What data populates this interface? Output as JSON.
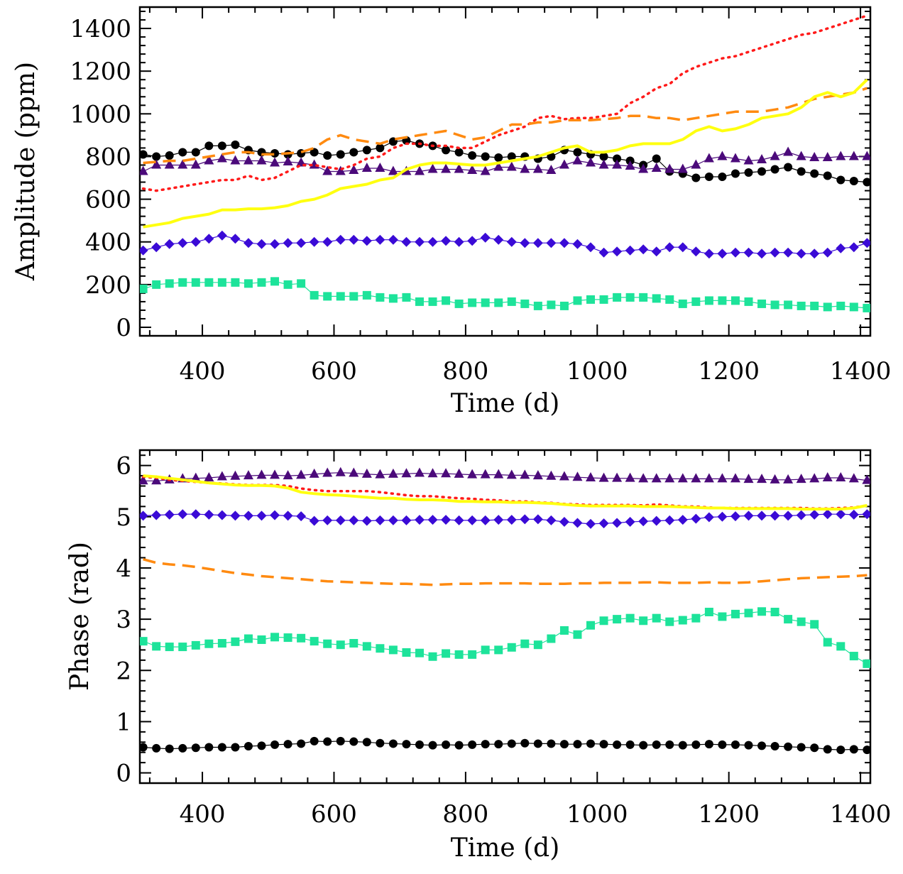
{
  "chart_data": [
    {
      "type": "line",
      "xlabel": "Time (d)",
      "ylabel": "Amplitude (ppm)",
      "xlim": [
        305,
        1415
      ],
      "ylim": [
        -40,
        1500
      ],
      "xticks": [
        400,
        600,
        800,
        1000,
        1200,
        1400
      ],
      "yticks": [
        0,
        200,
        400,
        600,
        800,
        1000,
        1200,
        1400
      ],
      "x": [
        310,
        330,
        350,
        370,
        390,
        410,
        430,
        450,
        470,
        490,
        510,
        530,
        550,
        570,
        590,
        610,
        630,
        650,
        670,
        690,
        710,
        730,
        750,
        770,
        790,
        810,
        830,
        850,
        870,
        890,
        910,
        930,
        950,
        970,
        990,
        1010,
        1030,
        1050,
        1070,
        1090,
        1110,
        1130,
        1150,
        1170,
        1190,
        1210,
        1230,
        1250,
        1270,
        1290,
        1310,
        1330,
        1350,
        1370,
        1390,
        1410
      ],
      "series": [
        {
          "name": "black-circles",
          "color": "#000000",
          "marker": "circle",
          "line": "solid",
          "values": [
            810,
            800,
            805,
            820,
            820,
            850,
            850,
            855,
            830,
            820,
            815,
            810,
            815,
            820,
            805,
            810,
            820,
            830,
            840,
            870,
            875,
            860,
            850,
            830,
            820,
            805,
            800,
            795,
            800,
            800,
            790,
            800,
            830,
            820,
            810,
            800,
            790,
            780,
            760,
            790,
            730,
            720,
            700,
            705,
            705,
            720,
            725,
            730,
            740,
            750,
            730,
            720,
            710,
            690,
            685,
            680
          ]
        },
        {
          "name": "purple-triangles",
          "color": "#4b0a7a",
          "marker": "triangle",
          "line": "solid",
          "values": [
            730,
            760,
            760,
            760,
            760,
            780,
            790,
            780,
            780,
            780,
            770,
            775,
            770,
            760,
            730,
            730,
            735,
            745,
            745,
            730,
            730,
            730,
            740,
            740,
            740,
            735,
            730,
            750,
            750,
            740,
            740,
            735,
            760,
            780,
            770,
            760,
            760,
            755,
            740,
            745,
            740,
            740,
            760,
            790,
            800,
            790,
            780,
            785,
            800,
            820,
            800,
            795,
            795,
            800,
            800,
            800
          ]
        },
        {
          "name": "blue-diamonds",
          "color": "#3a0ad6",
          "marker": "diamond",
          "line": "solid",
          "values": [
            360,
            375,
            390,
            395,
            400,
            415,
            430,
            415,
            395,
            390,
            390,
            395,
            395,
            400,
            400,
            410,
            410,
            405,
            410,
            410,
            400,
            400,
            400,
            405,
            400,
            405,
            420,
            410,
            400,
            395,
            395,
            395,
            395,
            390,
            375,
            350,
            355,
            360,
            365,
            355,
            375,
            375,
            355,
            345,
            345,
            350,
            350,
            345,
            350,
            350,
            345,
            345,
            350,
            370,
            375,
            395
          ]
        },
        {
          "name": "green-squares",
          "color": "#1de39a",
          "marker": "square",
          "line": "solid",
          "values": [
            180,
            200,
            205,
            210,
            210,
            210,
            210,
            210,
            205,
            210,
            215,
            200,
            205,
            150,
            145,
            145,
            145,
            150,
            140,
            135,
            140,
            120,
            120,
            125,
            110,
            115,
            115,
            115,
            120,
            110,
            100,
            105,
            100,
            125,
            130,
            130,
            140,
            140,
            140,
            135,
            130,
            110,
            120,
            125,
            125,
            125,
            120,
            110,
            105,
            105,
            100,
            100,
            95,
            100,
            95,
            90
          ]
        },
        {
          "name": "red-dotted",
          "color": "#ff1a1a",
          "marker": "none",
          "line": "dotted",
          "values": [
            650,
            640,
            650,
            660,
            670,
            680,
            690,
            690,
            710,
            690,
            700,
            730,
            760,
            760,
            750,
            740,
            760,
            790,
            800,
            840,
            860,
            860,
            850,
            850,
            840,
            840,
            870,
            900,
            920,
            940,
            980,
            990,
            975,
            980,
            980,
            990,
            1000,
            1050,
            1080,
            1120,
            1140,
            1190,
            1220,
            1240,
            1260,
            1270,
            1290,
            1310,
            1330,
            1350,
            1370,
            1380,
            1400,
            1420,
            1440,
            1460
          ]
        },
        {
          "name": "orange-dashed",
          "color": "#ff8a10",
          "marker": "none",
          "line": "dashed",
          "values": [
            770,
            775,
            780,
            780,
            790,
            800,
            810,
            820,
            820,
            810,
            810,
            815,
            820,
            840,
            880,
            900,
            880,
            870,
            860,
            880,
            890,
            900,
            910,
            920,
            900,
            880,
            890,
            920,
            950,
            950,
            960,
            960,
            970,
            970,
            970,
            975,
            980,
            990,
            990,
            980,
            980,
            970,
            980,
            990,
            1000,
            1010,
            1010,
            1010,
            1020,
            1030,
            1050,
            1070,
            1080,
            1090,
            1100,
            1120
          ]
        },
        {
          "name": "yellow-solid",
          "color": "#ffff10",
          "marker": "none",
          "line": "solid",
          "values": [
            470,
            480,
            490,
            510,
            520,
            530,
            550,
            550,
            555,
            555,
            560,
            570,
            590,
            600,
            620,
            650,
            660,
            670,
            690,
            700,
            740,
            760,
            770,
            770,
            765,
            760,
            760,
            770,
            780,
            790,
            800,
            820,
            840,
            850,
            820,
            820,
            830,
            850,
            860,
            860,
            860,
            880,
            920,
            940,
            920,
            930,
            950,
            980,
            990,
            1000,
            1030,
            1080,
            1100,
            1080,
            1100,
            1160
          ]
        }
      ]
    },
    {
      "type": "line",
      "xlabel": "Time (d)",
      "ylabel": "Phase (rad)",
      "xlim": [
        305,
        1415
      ],
      "ylim": [
        -0.2,
        6.3
      ],
      "xticks": [
        400,
        600,
        800,
        1000,
        1200,
        1400
      ],
      "yticks": [
        0,
        1,
        2,
        3,
        4,
        5,
        6
      ],
      "x": [
        310,
        330,
        350,
        370,
        390,
        410,
        430,
        450,
        470,
        490,
        510,
        530,
        550,
        570,
        590,
        610,
        630,
        650,
        670,
        690,
        710,
        730,
        750,
        770,
        790,
        810,
        830,
        850,
        870,
        890,
        910,
        930,
        950,
        970,
        990,
        1010,
        1030,
        1050,
        1070,
        1090,
        1110,
        1130,
        1150,
        1170,
        1190,
        1210,
        1230,
        1250,
        1270,
        1290,
        1310,
        1330,
        1350,
        1370,
        1390,
        1410
      ],
      "series": [
        {
          "name": "black-circles",
          "color": "#000000",
          "marker": "circle",
          "line": "solid",
          "values": [
            0.5,
            0.48,
            0.47,
            0.48,
            0.49,
            0.5,
            0.5,
            0.5,
            0.52,
            0.53,
            0.55,
            0.56,
            0.57,
            0.62,
            0.61,
            0.62,
            0.61,
            0.6,
            0.58,
            0.57,
            0.56,
            0.55,
            0.54,
            0.55,
            0.54,
            0.55,
            0.56,
            0.56,
            0.57,
            0.58,
            0.57,
            0.57,
            0.56,
            0.56,
            0.57,
            0.56,
            0.55,
            0.55,
            0.54,
            0.55,
            0.55,
            0.54,
            0.55,
            0.56,
            0.55,
            0.55,
            0.54,
            0.53,
            0.52,
            0.51,
            0.5,
            0.49,
            0.46,
            0.45,
            0.46,
            0.45
          ]
        },
        {
          "name": "purple-triangles",
          "color": "#4b0a7a",
          "marker": "triangle",
          "line": "solid",
          "values": [
            5.7,
            5.7,
            5.72,
            5.74,
            5.75,
            5.76,
            5.78,
            5.79,
            5.8,
            5.81,
            5.81,
            5.8,
            5.81,
            5.83,
            5.85,
            5.86,
            5.85,
            5.83,
            5.82,
            5.83,
            5.84,
            5.85,
            5.84,
            5.84,
            5.83,
            5.82,
            5.82,
            5.82,
            5.81,
            5.81,
            5.8,
            5.79,
            5.78,
            5.77,
            5.76,
            5.75,
            5.75,
            5.75,
            5.74,
            5.74,
            5.74,
            5.74,
            5.74,
            5.74,
            5.74,
            5.74,
            5.73,
            5.73,
            5.72,
            5.72,
            5.73,
            5.74,
            5.76,
            5.76,
            5.74,
            5.71
          ]
        },
        {
          "name": "blue-diamonds",
          "color": "#3a0ad6",
          "marker": "diamond",
          "line": "solid",
          "values": [
            5.02,
            5.03,
            5.04,
            5.05,
            5.05,
            5.04,
            5.03,
            5.02,
            5.02,
            5.02,
            5.03,
            5.02,
            5.01,
            4.92,
            4.93,
            4.93,
            4.93,
            4.92,
            4.93,
            4.93,
            4.93,
            4.94,
            4.94,
            4.94,
            4.93,
            4.93,
            4.93,
            4.94,
            4.94,
            4.95,
            4.95,
            4.93,
            4.9,
            4.88,
            4.86,
            4.87,
            4.88,
            4.9,
            4.91,
            4.92,
            4.93,
            4.94,
            4.96,
            4.99,
            5.0,
            5.01,
            5.02,
            5.02,
            5.02,
            5.02,
            5.03,
            5.04,
            5.05,
            5.05,
            5.04,
            5.05
          ]
        },
        {
          "name": "green-squares",
          "color": "#1de39a",
          "marker": "square",
          "line": "solid",
          "values": [
            2.57,
            2.47,
            2.46,
            2.46,
            2.49,
            2.52,
            2.53,
            2.56,
            2.62,
            2.6,
            2.65,
            2.64,
            2.63,
            2.57,
            2.52,
            2.5,
            2.53,
            2.47,
            2.43,
            2.4,
            2.35,
            2.34,
            2.27,
            2.33,
            2.31,
            2.31,
            2.4,
            2.4,
            2.45,
            2.52,
            2.5,
            2.62,
            2.78,
            2.7,
            2.88,
            2.97,
            3.0,
            3.02,
            2.97,
            3.02,
            2.95,
            2.98,
            3.02,
            3.14,
            3.05,
            3.1,
            3.12,
            3.15,
            3.14,
            3.0,
            2.95,
            2.9,
            2.55,
            2.47,
            2.28,
            2.13
          ]
        },
        {
          "name": "red-dotted",
          "color": "#ff1a1a",
          "marker": "none",
          "line": "dotted",
          "values": [
            5.78,
            5.76,
            5.72,
            5.7,
            5.68,
            5.66,
            5.65,
            5.63,
            5.62,
            5.62,
            5.62,
            5.6,
            5.55,
            5.52,
            5.5,
            5.5,
            5.5,
            5.5,
            5.48,
            5.45,
            5.42,
            5.4,
            5.4,
            5.38,
            5.36,
            5.35,
            5.33,
            5.32,
            5.3,
            5.3,
            5.28,
            5.27,
            5.25,
            5.24,
            5.23,
            5.23,
            5.23,
            5.23,
            5.22,
            5.24,
            5.22,
            5.2,
            5.2,
            5.18,
            5.17,
            5.17,
            5.17,
            5.17,
            5.17,
            5.17,
            5.17,
            5.16,
            5.16,
            5.17,
            5.18,
            5.22
          ]
        },
        {
          "name": "orange-dashed",
          "color": "#ff8a10",
          "marker": "none",
          "line": "dashed",
          "values": [
            4.17,
            4.1,
            4.07,
            4.05,
            4.02,
            3.98,
            3.94,
            3.9,
            3.87,
            3.84,
            3.82,
            3.8,
            3.78,
            3.76,
            3.74,
            3.73,
            3.72,
            3.71,
            3.7,
            3.69,
            3.69,
            3.68,
            3.67,
            3.68,
            3.69,
            3.69,
            3.7,
            3.7,
            3.7,
            3.7,
            3.69,
            3.69,
            3.69,
            3.7,
            3.7,
            3.71,
            3.71,
            3.71,
            3.72,
            3.72,
            3.71,
            3.71,
            3.71,
            3.72,
            3.71,
            3.71,
            3.72,
            3.74,
            3.76,
            3.78,
            3.8,
            3.81,
            3.82,
            3.83,
            3.84,
            3.86
          ]
        },
        {
          "name": "yellow-solid",
          "color": "#ffff10",
          "marker": "none",
          "line": "solid",
          "values": [
            5.8,
            5.78,
            5.75,
            5.72,
            5.69,
            5.66,
            5.64,
            5.62,
            5.61,
            5.61,
            5.6,
            5.56,
            5.48,
            5.45,
            5.43,
            5.42,
            5.4,
            5.38,
            5.36,
            5.36,
            5.34,
            5.33,
            5.33,
            5.32,
            5.3,
            5.3,
            5.29,
            5.29,
            5.28,
            5.28,
            5.27,
            5.26,
            5.24,
            5.22,
            5.21,
            5.21,
            5.21,
            5.21,
            5.2,
            5.2,
            5.2,
            5.19,
            5.18,
            5.17,
            5.17,
            5.16,
            5.16,
            5.16,
            5.16,
            5.16,
            5.15,
            5.15,
            5.15,
            5.15,
            5.17,
            5.22
          ]
        }
      ]
    }
  ]
}
